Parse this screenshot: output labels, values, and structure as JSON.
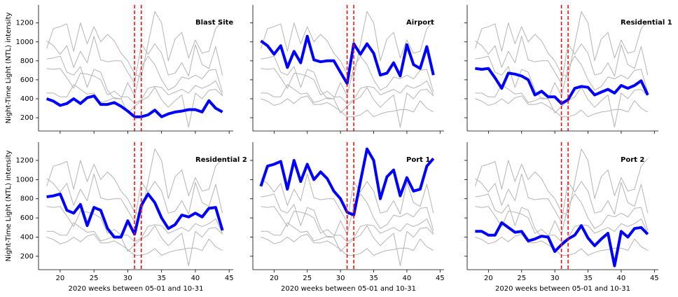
{
  "chart_data": {
    "type": "line",
    "xlabel": "2020 weeks between 05-01 and 10-31",
    "ylabel": "Night-Time Light (NTL) intensity",
    "x": [
      18,
      19,
      20,
      21,
      22,
      23,
      24,
      25,
      26,
      27,
      28,
      29,
      30,
      31,
      32,
      33,
      34,
      35,
      36,
      37,
      38,
      39,
      40,
      41,
      42,
      43,
      44
    ],
    "xlim": [
      16.8,
      45.6
    ],
    "xticks": [
      20,
      25,
      30,
      35,
      40,
      45
    ],
    "ylim": [
      60,
      1390
    ],
    "yticks": [
      200,
      400,
      600,
      800,
      1000,
      1200
    ],
    "context_color": "#b4b4b4",
    "vlines": [
      31,
      32
    ],
    "vline_color": "#ff0000",
    "series": [
      {
        "name": "Blast Site",
        "color": "#0000ff",
        "values": [
          400,
          375,
          330,
          350,
          400,
          350,
          410,
          430,
          340,
          340,
          360,
          320,
          270,
          210,
          210,
          230,
          280,
          210,
          240,
          260,
          270,
          285,
          285,
          260,
          380,
          300,
          260
        ]
      },
      {
        "name": "Airport",
        "color": "#0000ff",
        "values": [
          1010,
          960,
          870,
          960,
          730,
          900,
          780,
          1060,
          810,
          790,
          800,
          800,
          680,
          560,
          980,
          870,
          980,
          880,
          650,
          670,
          780,
          640,
          970,
          760,
          720,
          950,
          650
        ]
      },
      {
        "name": "Residential 1",
        "color": "#0000ff",
        "values": [
          720,
          710,
          720,
          620,
          510,
          670,
          660,
          640,
          600,
          440,
          480,
          420,
          420,
          350,
          390,
          510,
          530,
          520,
          440,
          470,
          500,
          460,
          540,
          510,
          540,
          590,
          440
        ]
      },
      {
        "name": "Residential 2",
        "color": "#0000ff",
        "values": [
          820,
          830,
          850,
          680,
          650,
          740,
          520,
          710,
          680,
          490,
          400,
          400,
          570,
          430,
          730,
          850,
          760,
          600,
          490,
          530,
          630,
          610,
          650,
          610,
          700,
          710,
          470
        ]
      },
      {
        "name": "Port 1",
        "color": "#0000ff",
        "values": [
          930,
          1140,
          1160,
          1190,
          900,
          1200,
          980,
          1160,
          1000,
          1080,
          1010,
          880,
          800,
          660,
          630,
          980,
          1320,
          1200,
          800,
          1030,
          1100,
          830,
          1020,
          880,
          900,
          1140,
          1220
        ]
      },
      {
        "name": "Port 2",
        "color": "#0000ff",
        "values": [
          460,
          460,
          420,
          420,
          550,
          500,
          450,
          460,
          360,
          380,
          410,
          400,
          250,
          320,
          380,
          420,
          520,
          390,
          310,
          380,
          440,
          100,
          460,
          400,
          490,
          500,
          430
        ]
      }
    ]
  }
}
